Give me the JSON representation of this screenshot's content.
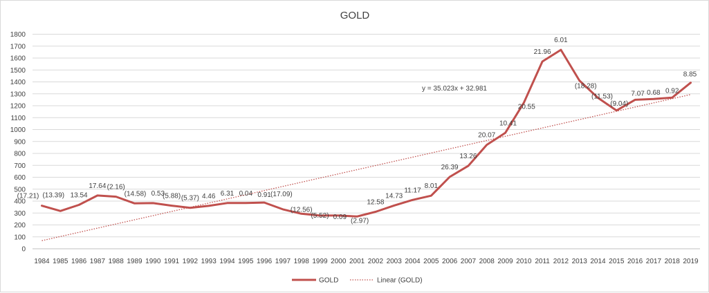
{
  "chart_data": {
    "type": "line",
    "title": "GOLD",
    "xlabel": "",
    "ylabel": "",
    "categories": [
      "1984",
      "1985",
      "1986",
      "1987",
      "1988",
      "1989",
      "1990",
      "1991",
      "1992",
      "1993",
      "1994",
      "1995",
      "1996",
      "1997",
      "1998",
      "1999",
      "2000",
      "2001",
      "2002",
      "2003",
      "2004",
      "2005",
      "2006",
      "2007",
      "2008",
      "2009",
      "2010",
      "2011",
      "2012",
      "2013",
      "2014",
      "2015",
      "2016",
      "2017",
      "2018",
      "2019"
    ],
    "series": [
      {
        "name": "GOLD",
        "color": "#c0504d",
        "values": [
          361,
          317,
          368,
          447,
          437,
          381,
          383,
          362,
          344,
          360,
          384,
          384,
          388,
          331,
          294,
          279,
          279,
          271,
          310,
          363,
          410,
          445,
          603,
          695,
          872,
          972,
          1225,
          1571,
          1669,
          1411,
          1266,
          1160,
          1250,
          1257,
          1268,
          1393
        ],
        "labels": [
          "(17.21)",
          "(13.39)",
          "13.54",
          "17.64",
          "(2.16)",
          "(14.58)",
          "0.53",
          "(5.88)",
          "(5.37)",
          "4.46",
          "6.31",
          "0.04",
          "0.91",
          "(17.09)",
          "(12.56)",
          "(5.52)",
          "0.09",
          "(2.97)",
          "12.58",
          "14.73",
          "11.17",
          "8.01",
          "26.39",
          "13.26",
          "20.07",
          "10.41",
          "20.55",
          "21.96",
          "6.01",
          "(18.28)",
          "(11.53)",
          "(9.04)",
          "7.07",
          "0.68",
          "0.92",
          "8.85"
        ]
      },
      {
        "name": "Linear (GOLD)",
        "color": "#c0504d",
        "dashed": true,
        "trendline": {
          "slope": 35.023,
          "intercept": 32.981,
          "equation": "y = 35.023x + 32.981"
        }
      }
    ],
    "ylim": [
      0,
      1800
    ],
    "yticks": [
      0,
      100,
      200,
      300,
      400,
      500,
      600,
      700,
      800,
      900,
      1000,
      1100,
      1200,
      1300,
      1400,
      1500,
      1600,
      1700,
      1800
    ],
    "grid": true,
    "legend_position": "bottom"
  }
}
